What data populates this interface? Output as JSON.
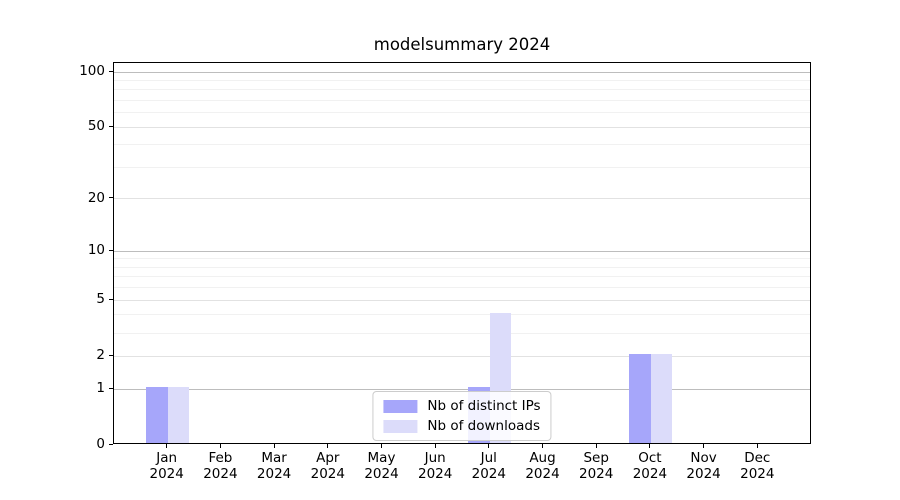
{
  "chart_data": {
    "type": "bar",
    "title": "modelsummary 2024",
    "categories": [
      "Jan",
      "Feb",
      "Mar",
      "Apr",
      "May",
      "Jun",
      "Jul",
      "Aug",
      "Sep",
      "Oct",
      "Nov",
      "Dec"
    ],
    "year_label": "2024",
    "series": [
      {
        "name": "Nb of distinct IPs",
        "color": "#a6a6fa",
        "values": [
          1,
          0,
          0,
          0,
          0,
          0,
          1,
          0,
          0,
          2,
          0,
          0
        ]
      },
      {
        "name": "Nb of downloads",
        "color": "#dcdcfa",
        "values": [
          1,
          0,
          0,
          0,
          0,
          0,
          4,
          0,
          0,
          2,
          0,
          0
        ]
      }
    ],
    "yscale": "log10(1+x)",
    "ylim": [
      0,
      112
    ],
    "yticks": [
      0,
      1,
      2,
      5,
      10,
      20,
      50,
      100
    ],
    "grid": {
      "emphasized": [
        1,
        10,
        100
      ],
      "regular": [
        2,
        5,
        20,
        50
      ],
      "minor": [
        3,
        4,
        6,
        7,
        8,
        9,
        30,
        40,
        60,
        70,
        80,
        90
      ]
    },
    "legend": {
      "position": "lower center",
      "labels": [
        "Nb of distinct IPs",
        "Nb of downloads"
      ]
    },
    "colors": {
      "bar_distinct_ips": "#a6a6fa",
      "bar_downloads": "#dcdcfa",
      "grid_emphasized": "#bdbdbd",
      "grid_regular": "#e2e2e2",
      "grid_minor": "#f1f1f1",
      "axis": "#000000",
      "text": "#000000",
      "legend_border": "#cccccc",
      "background": "#ffffff"
    }
  }
}
